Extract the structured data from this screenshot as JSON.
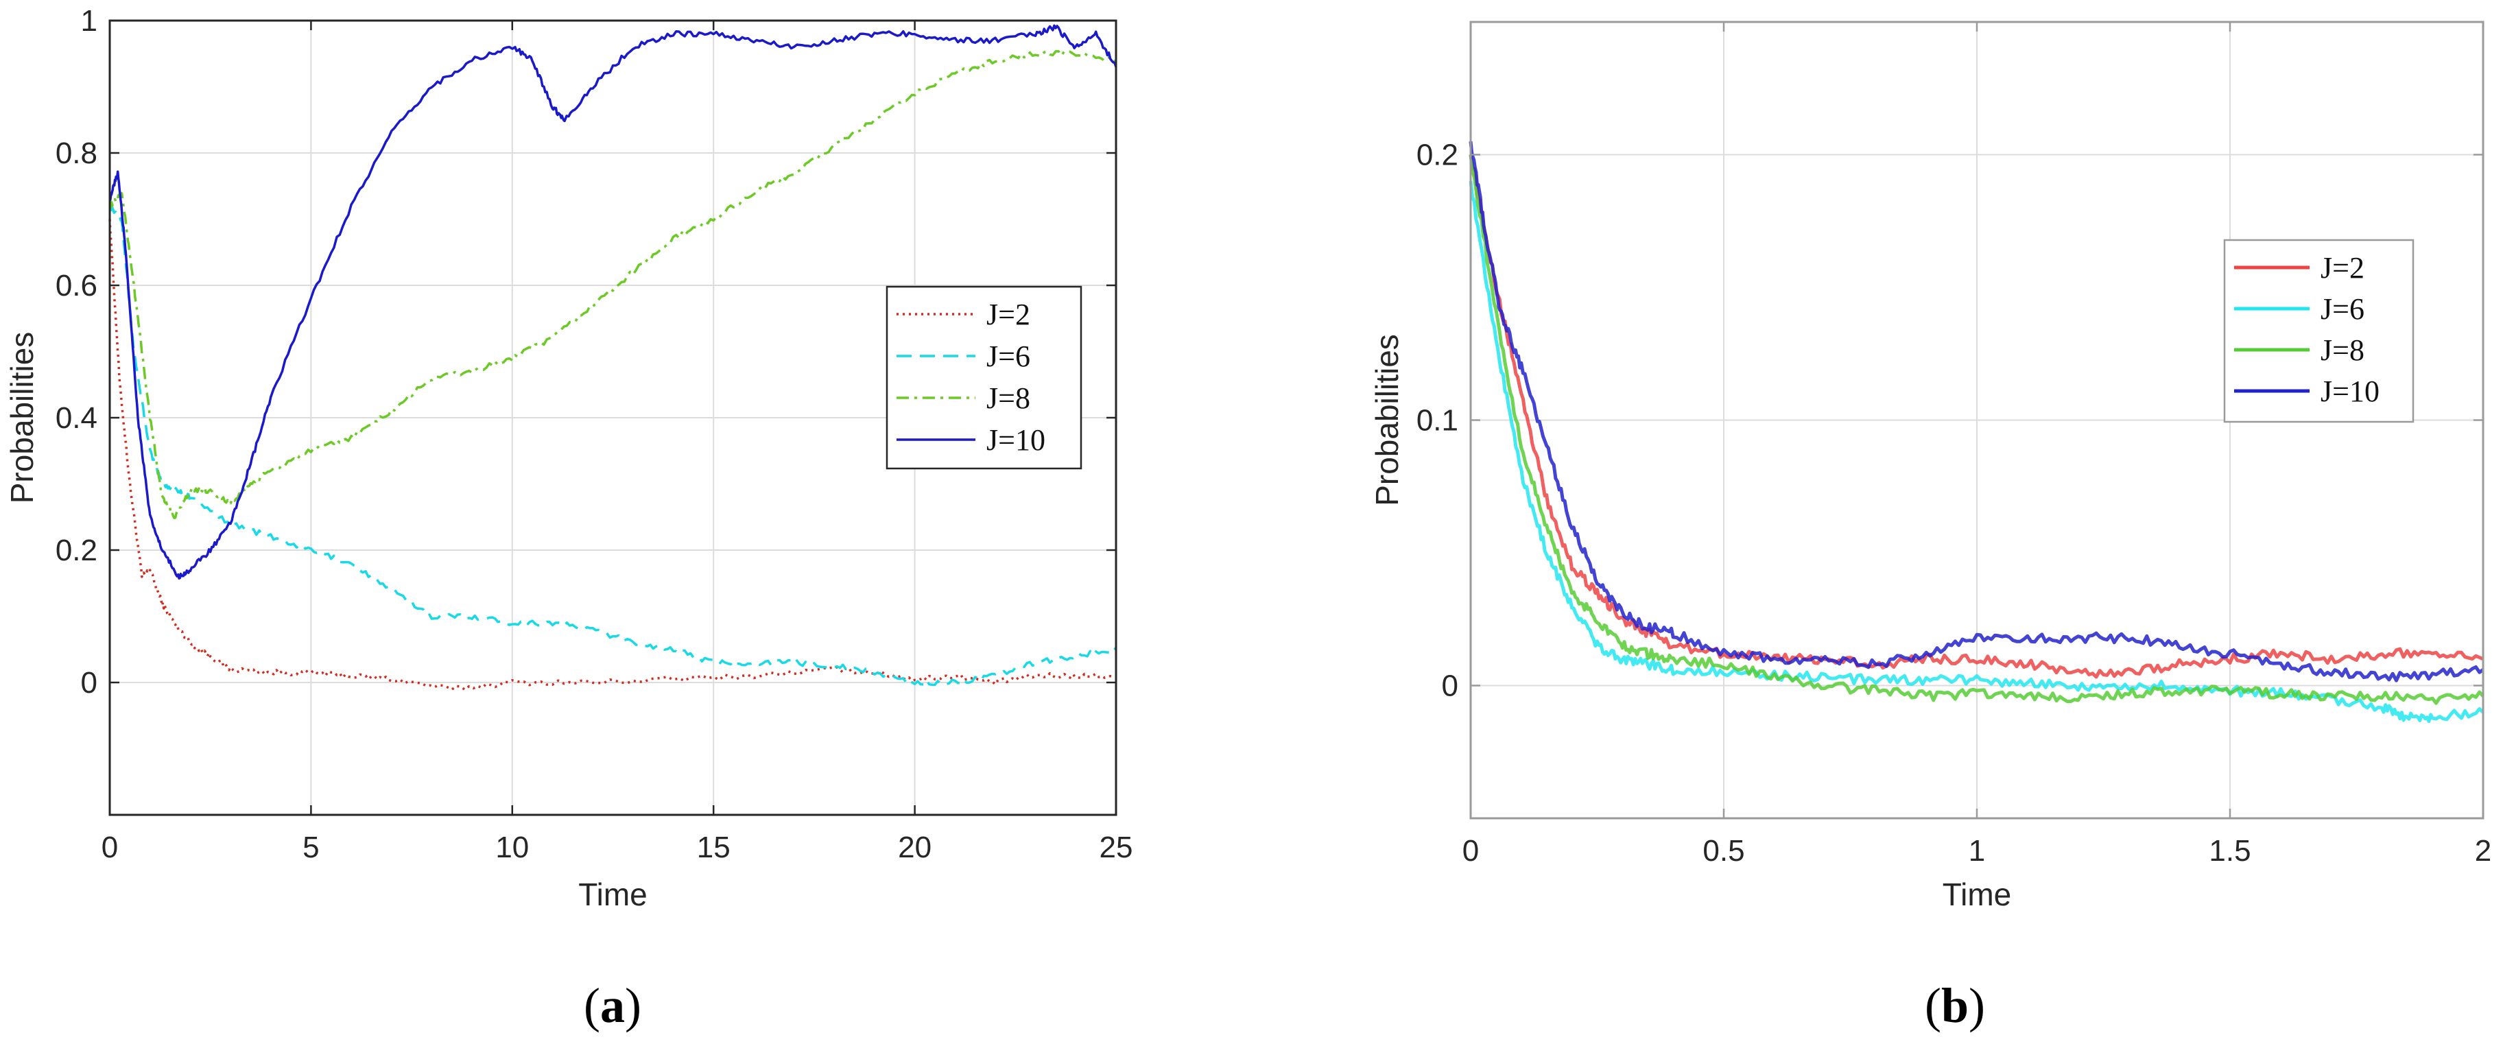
{
  "chart_data": [
    {
      "type": "line",
      "panel_label": "a",
      "xlabel": "Time",
      "ylabel": "Probabilities",
      "xlim": [
        0,
        25
      ],
      "ylim": [
        -0.2,
        1.0
      ],
      "xticks": [
        0,
        5,
        10,
        15,
        20,
        25
      ],
      "yticks": [
        0,
        0.2,
        0.4,
        0.6,
        0.8,
        1
      ],
      "ytick_labels": [
        "0",
        "0.2",
        "0.4",
        "0.6",
        "0.8",
        "1"
      ],
      "grid": true,
      "legend_position": "center-right",
      "series": [
        {
          "name": "J=2",
          "color": "#d42a1e",
          "dash": "dotted",
          "x": [
            0,
            0.25,
            0.5,
            0.8,
            1.0,
            1.3,
            1.6,
            2.0,
            2.5,
            3.0,
            4.0,
            5.0,
            6.0,
            7.0,
            8.5,
            10,
            12,
            14,
            16,
            18,
            19,
            20,
            21,
            22,
            23,
            24,
            25
          ],
          "y": [
            0.7,
            0.45,
            0.3,
            0.16,
            0.17,
            0.12,
            0.09,
            0.06,
            0.04,
            0.02,
            0.015,
            0.015,
            0.01,
            0.005,
            -0.01,
            0.0,
            0.0,
            0.005,
            0.01,
            0.02,
            0.015,
            0.005,
            0.01,
            0.0,
            0.01,
            0.01,
            0.01
          ]
        },
        {
          "name": "J=6",
          "color": "#19d9e6",
          "dash": "dashed",
          "x": [
            0,
            0.3,
            0.6,
            1.0,
            1.3,
            1.7,
            2.0,
            3.0,
            4.0,
            5.0,
            6.0,
            7.0,
            8.0,
            9.0,
            10,
            11,
            12,
            13,
            14,
            15,
            16,
            17,
            18,
            19,
            20,
            21,
            22,
            23,
            24,
            25
          ],
          "y": [
            0.72,
            0.7,
            0.5,
            0.35,
            0.3,
            0.29,
            0.28,
            0.24,
            0.22,
            0.2,
            0.18,
            0.14,
            0.1,
            0.1,
            0.09,
            0.09,
            0.08,
            0.06,
            0.05,
            0.03,
            0.03,
            0.03,
            0.025,
            0.015,
            0.0,
            0.0,
            0.01,
            0.03,
            0.04,
            0.05
          ]
        },
        {
          "name": "J=8",
          "color": "#6cc926",
          "dash": "dashdot",
          "x": [
            0,
            0.3,
            0.6,
            1.0,
            1.3,
            1.6,
            2.0,
            2.5,
            3.0,
            3.5,
            4.0,
            5.0,
            6.0,
            7.0,
            8.0,
            9.0,
            10,
            11,
            12,
            13,
            14,
            15,
            16,
            17,
            18,
            19,
            20,
            21,
            22,
            23,
            24,
            25
          ],
          "y": [
            0.72,
            0.74,
            0.6,
            0.4,
            0.28,
            0.25,
            0.29,
            0.29,
            0.27,
            0.3,
            0.32,
            0.35,
            0.37,
            0.41,
            0.46,
            0.47,
            0.49,
            0.52,
            0.57,
            0.62,
            0.67,
            0.7,
            0.74,
            0.77,
            0.81,
            0.85,
            0.89,
            0.92,
            0.94,
            0.95,
            0.95,
            0.94
          ]
        },
        {
          "name": "J=10",
          "color": "#1a1acc",
          "dash": "solid",
          "x": [
            0,
            0.2,
            0.4,
            0.7,
            1.0,
            1.3,
            1.7,
            2.0,
            2.5,
            3.0,
            3.5,
            4.0,
            5.0,
            6.0,
            7.0,
            8.0,
            9.0,
            10.0,
            10.5,
            11.0,
            11.3,
            12.0,
            13.0,
            14.0,
            15.0,
            16.0,
            17.0,
            18.0,
            19.0,
            20.0,
            21.0,
            22.0,
            23.0,
            23.5,
            24.0,
            24.5,
            25.0
          ],
          "y": [
            0.73,
            0.77,
            0.65,
            0.4,
            0.25,
            0.2,
            0.16,
            0.17,
            0.2,
            0.24,
            0.33,
            0.43,
            0.58,
            0.72,
            0.83,
            0.9,
            0.94,
            0.96,
            0.94,
            0.87,
            0.85,
            0.9,
            0.96,
            0.98,
            0.98,
            0.97,
            0.96,
            0.97,
            0.98,
            0.98,
            0.97,
            0.97,
            0.98,
            0.99,
            0.96,
            0.98,
            0.93
          ]
        }
      ]
    },
    {
      "type": "line",
      "panel_label": "b",
      "xlabel": "Time",
      "ylabel": "Probabilities",
      "xlim": [
        0,
        2
      ],
      "ylim": [
        -0.05,
        0.25
      ],
      "xticks": [
        0,
        0.5,
        1,
        1.5,
        2
      ],
      "yticks": [
        0,
        0.1,
        0.2
      ],
      "ytick_labels": [
        "0",
        "0.1",
        "0.2"
      ],
      "grid": true,
      "legend_position": "top-right",
      "series": [
        {
          "name": "J=2",
          "color": "#ee4444",
          "dash": "solid",
          "x": [
            0,
            0.05,
            0.1,
            0.15,
            0.2,
            0.25,
            0.3,
            0.35,
            0.4,
            0.5,
            0.6,
            0.7,
            0.8,
            0.9,
            1.0,
            1.1,
            1.2,
            1.3,
            1.4,
            1.5,
            1.6,
            1.7,
            1.8,
            1.9,
            2.0
          ],
          "y": [
            0.2,
            0.15,
            0.11,
            0.07,
            0.045,
            0.035,
            0.025,
            0.02,
            0.015,
            0.012,
            0.01,
            0.01,
            0.008,
            0.01,
            0.01,
            0.008,
            0.005,
            0.005,
            0.008,
            0.01,
            0.012,
            0.01,
            0.012,
            0.012,
            0.01
          ]
        },
        {
          "name": "J=6",
          "color": "#22e6ee",
          "dash": "solid",
          "x": [
            0,
            0.05,
            0.1,
            0.15,
            0.2,
            0.25,
            0.3,
            0.35,
            0.4,
            0.5,
            0.6,
            0.7,
            0.8,
            0.9,
            1.0,
            1.1,
            1.2,
            1.3,
            1.4,
            1.5,
            1.6,
            1.7,
            1.8,
            1.85,
            1.9,
            2.0
          ],
          "y": [
            0.19,
            0.13,
            0.08,
            0.05,
            0.03,
            0.015,
            0.01,
            0.008,
            0.006,
            0.005,
            0.004,
            0.003,
            0.002,
            0.002,
            0.002,
            0.001,
            0.0,
            0.0,
            0.0,
            -0.002,
            -0.003,
            -0.005,
            -0.008,
            -0.012,
            -0.012,
            -0.01
          ]
        },
        {
          "name": "J=8",
          "color": "#55cc33",
          "dash": "solid",
          "x": [
            0,
            0.05,
            0.1,
            0.15,
            0.2,
            0.25,
            0.3,
            0.35,
            0.4,
            0.5,
            0.6,
            0.7,
            0.8,
            0.9,
            1.0,
            1.1,
            1.2,
            1.3,
            1.4,
            1.5,
            1.6,
            1.7,
            1.8,
            1.9,
            2.0
          ],
          "y": [
            0.2,
            0.14,
            0.09,
            0.06,
            0.035,
            0.025,
            0.015,
            0.012,
            0.01,
            0.008,
            0.003,
            0.0,
            -0.002,
            -0.004,
            -0.003,
            -0.004,
            -0.005,
            -0.003,
            -0.002,
            -0.002,
            -0.003,
            -0.004,
            -0.004,
            -0.005,
            -0.004
          ]
        },
        {
          "name": "J=10",
          "color": "#2222cc",
          "dash": "solid",
          "x": [
            0,
            0.03,
            0.06,
            0.1,
            0.15,
            0.2,
            0.25,
            0.3,
            0.35,
            0.4,
            0.5,
            0.6,
            0.7,
            0.8,
            0.9,
            1.0,
            1.1,
            1.2,
            1.3,
            1.4,
            1.5,
            1.6,
            1.7,
            1.8,
            1.9,
            2.0
          ],
          "y": [
            0.205,
            0.17,
            0.14,
            0.12,
            0.09,
            0.06,
            0.04,
            0.027,
            0.022,
            0.02,
            0.012,
            0.01,
            0.01,
            0.008,
            0.012,
            0.018,
            0.018,
            0.018,
            0.018,
            0.015,
            0.012,
            0.008,
            0.005,
            0.003,
            0.004,
            0.006
          ]
        }
      ]
    }
  ]
}
